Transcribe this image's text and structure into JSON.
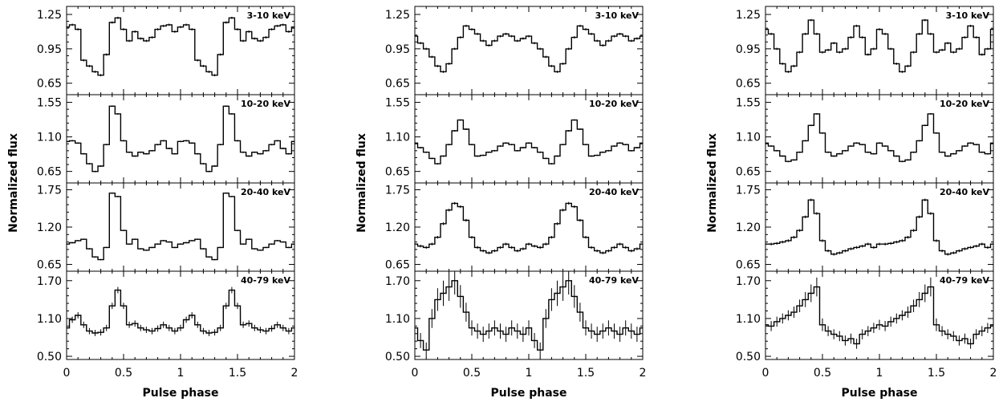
{
  "chart_data": [
    {
      "type": "line",
      "xlabel": "Pulse phase",
      "ylabel": "Normalized flux",
      "x_ticks": [
        "0",
        "0.5",
        "1",
        "1.5",
        "2"
      ],
      "xlim": [
        0,
        2
      ],
      "panels": [
        {
          "label": "3-10 keV",
          "ylim": [
            0.55,
            1.32
          ],
          "y_ticks": [
            "0.65",
            "0.95",
            "1.25"
          ],
          "y_tick_values": [
            0.65,
            0.95,
            1.25
          ],
          "x": [
            0.0,
            0.05,
            0.1,
            0.15,
            0.2,
            0.25,
            0.3,
            0.35,
            0.4,
            0.45,
            0.5,
            0.55,
            0.6,
            0.65,
            0.7,
            0.75,
            0.8,
            0.85,
            0.9,
            0.95,
            1.0
          ],
          "values": [
            1.14,
            1.16,
            1.12,
            0.85,
            0.8,
            0.75,
            0.72,
            0.9,
            1.18,
            1.22,
            1.12,
            1.02,
            1.1,
            1.04,
            1.02,
            1.05,
            1.12,
            1.15,
            1.16,
            1.1,
            1.14
          ],
          "errors": [
            0.01,
            0.01,
            0.01,
            0.01,
            0.01,
            0.01,
            0.01,
            0.01,
            0.01,
            0.01,
            0.01,
            0.01,
            0.01,
            0.01,
            0.01,
            0.01,
            0.01,
            0.01,
            0.01,
            0.01,
            0.01
          ]
        },
        {
          "label": "10-20 keV",
          "ylim": [
            0.5,
            1.65
          ],
          "y_ticks": [
            "0.65",
            "1.10",
            "1.55"
          ],
          "y_tick_values": [
            0.65,
            1.1,
            1.55
          ],
          "x": [
            0.0,
            0.05,
            0.1,
            0.15,
            0.2,
            0.25,
            0.3,
            0.35,
            0.4,
            0.45,
            0.5,
            0.55,
            0.6,
            0.65,
            0.7,
            0.75,
            0.8,
            0.85,
            0.9,
            0.95,
            1.0
          ],
          "values": [
            1.04,
            1.05,
            1.02,
            0.88,
            0.75,
            0.65,
            0.72,
            1.0,
            1.5,
            1.4,
            1.05,
            0.9,
            0.85,
            0.9,
            0.88,
            0.92,
            1.0,
            1.05,
            0.95,
            0.88,
            1.04
          ],
          "errors": [
            0.01,
            0.01,
            0.01,
            0.01,
            0.01,
            0.01,
            0.01,
            0.01,
            0.01,
            0.01,
            0.01,
            0.01,
            0.01,
            0.01,
            0.01,
            0.01,
            0.01,
            0.01,
            0.01,
            0.01,
            0.01
          ]
        },
        {
          "label": "20-40 keV",
          "ylim": [
            0.55,
            1.85
          ],
          "y_ticks": [
            "0.65",
            "1.20",
            "1.75"
          ],
          "y_tick_values": [
            0.65,
            1.2,
            1.75
          ],
          "x": [
            0.0,
            0.05,
            0.1,
            0.15,
            0.2,
            0.25,
            0.3,
            0.35,
            0.4,
            0.45,
            0.5,
            0.55,
            0.6,
            0.65,
            0.7,
            0.75,
            0.8,
            0.85,
            0.9,
            0.95,
            1.0
          ],
          "values": [
            0.95,
            0.97,
            1.0,
            1.02,
            0.88,
            0.76,
            0.72,
            0.9,
            1.7,
            1.65,
            1.15,
            0.95,
            1.02,
            0.88,
            0.86,
            0.9,
            0.95,
            1.0,
            0.98,
            0.9,
            0.95
          ],
          "errors": [
            0.01,
            0.01,
            0.01,
            0.01,
            0.01,
            0.01,
            0.01,
            0.01,
            0.01,
            0.01,
            0.01,
            0.01,
            0.01,
            0.01,
            0.01,
            0.01,
            0.01,
            0.01,
            0.01,
            0.01,
            0.01
          ]
        },
        {
          "label": "40-79 keV",
          "ylim": [
            0.45,
            1.85
          ],
          "y_ticks": [
            "0.50",
            "1.10",
            "1.70"
          ],
          "y_tick_values": [
            0.5,
            1.1,
            1.7
          ],
          "x": [
            0.0,
            0.05,
            0.1,
            0.15,
            0.2,
            0.25,
            0.3,
            0.35,
            0.4,
            0.45,
            0.5,
            0.55,
            0.6,
            0.65,
            0.7,
            0.75,
            0.8,
            0.85,
            0.9,
            0.95,
            1.0
          ],
          "values": [
            0.95,
            1.08,
            1.15,
            1.0,
            0.9,
            0.87,
            0.88,
            0.95,
            1.3,
            1.55,
            1.3,
            1.0,
            1.02,
            0.95,
            0.92,
            0.9,
            0.94,
            1.0,
            0.95,
            0.9,
            0.95
          ],
          "errors": [
            0.05,
            0.05,
            0.05,
            0.05,
            0.05,
            0.05,
            0.05,
            0.05,
            0.05,
            0.05,
            0.05,
            0.05,
            0.05,
            0.05,
            0.05,
            0.05,
            0.05,
            0.05,
            0.05,
            0.05,
            0.05
          ]
        }
      ]
    },
    {
      "type": "line",
      "xlabel": "Pulse phase",
      "ylabel": "Normalized flux",
      "x_ticks": [
        "0",
        "0.5",
        "1",
        "1.5",
        "2"
      ],
      "xlim": [
        0,
        2
      ],
      "panels": [
        {
          "label": "3-10 keV",
          "ylim": [
            0.55,
            1.32
          ],
          "y_ticks": [
            "0.65",
            "0.95",
            "1.25"
          ],
          "y_tick_values": [
            0.65,
            0.95,
            1.25
          ],
          "x": [
            0.0,
            0.05,
            0.1,
            0.15,
            0.2,
            0.25,
            0.3,
            0.35,
            0.4,
            0.45,
            0.5,
            0.55,
            0.6,
            0.65,
            0.7,
            0.75,
            0.8,
            0.85,
            0.9,
            0.95,
            1.0
          ],
          "values": [
            1.06,
            1.0,
            0.95,
            0.88,
            0.8,
            0.75,
            0.82,
            0.95,
            1.05,
            1.15,
            1.12,
            1.08,
            1.02,
            0.98,
            1.02,
            1.06,
            1.08,
            1.06,
            1.02,
            1.04,
            1.06
          ],
          "errors": [
            0.01,
            0.01,
            0.01,
            0.01,
            0.01,
            0.01,
            0.01,
            0.01,
            0.01,
            0.01,
            0.01,
            0.01,
            0.01,
            0.01,
            0.01,
            0.01,
            0.01,
            0.01,
            0.01,
            0.01,
            0.01
          ]
        },
        {
          "label": "10-20 keV",
          "ylim": [
            0.5,
            1.65
          ],
          "y_ticks": [
            "0.65",
            "1.10",
            "1.55"
          ],
          "y_tick_values": [
            0.65,
            1.1,
            1.55
          ],
          "x": [
            0.0,
            0.05,
            0.1,
            0.15,
            0.2,
            0.25,
            0.3,
            0.35,
            0.4,
            0.45,
            0.5,
            0.55,
            0.6,
            0.65,
            0.7,
            0.75,
            0.8,
            0.85,
            0.9,
            0.95,
            1.0
          ],
          "values": [
            1.02,
            0.96,
            0.9,
            0.82,
            0.75,
            0.85,
            1.0,
            1.18,
            1.32,
            1.2,
            1.0,
            0.85,
            0.86,
            0.9,
            0.92,
            0.98,
            1.02,
            1.0,
            0.92,
            0.96,
            1.02
          ],
          "errors": [
            0.01,
            0.01,
            0.01,
            0.01,
            0.01,
            0.01,
            0.01,
            0.01,
            0.01,
            0.01,
            0.01,
            0.01,
            0.01,
            0.01,
            0.01,
            0.01,
            0.01,
            0.01,
            0.01,
            0.01,
            0.01
          ]
        },
        {
          "label": "20-40 keV",
          "ylim": [
            0.55,
            1.85
          ],
          "y_ticks": [
            "0.65",
            "1.20",
            "1.75"
          ],
          "y_tick_values": [
            0.65,
            1.2,
            1.75
          ],
          "x": [
            0.0,
            0.05,
            0.1,
            0.15,
            0.2,
            0.25,
            0.3,
            0.35,
            0.4,
            0.45,
            0.5,
            0.55,
            0.6,
            0.65,
            0.7,
            0.75,
            0.8,
            0.85,
            0.9,
            0.95,
            1.0
          ],
          "values": [
            0.95,
            0.92,
            0.9,
            0.95,
            1.05,
            1.25,
            1.45,
            1.55,
            1.5,
            1.3,
            1.05,
            0.9,
            0.85,
            0.82,
            0.85,
            0.9,
            0.95,
            0.9,
            0.85,
            0.88,
            0.95
          ],
          "errors": [
            0.02,
            0.02,
            0.02,
            0.02,
            0.02,
            0.02,
            0.02,
            0.02,
            0.02,
            0.02,
            0.02,
            0.02,
            0.02,
            0.02,
            0.02,
            0.02,
            0.02,
            0.02,
            0.02,
            0.02,
            0.02
          ]
        },
        {
          "label": "40-79 keV",
          "ylim": [
            0.45,
            1.85
          ],
          "y_ticks": [
            "0.50",
            "1.10",
            "1.70"
          ],
          "y_tick_values": [
            0.5,
            1.1,
            1.7
          ],
          "x": [
            0.0,
            0.05,
            0.1,
            0.15,
            0.2,
            0.25,
            0.3,
            0.35,
            0.4,
            0.45,
            0.5,
            0.55,
            0.6,
            0.65,
            0.7,
            0.75,
            0.8,
            0.85,
            0.9,
            0.95,
            1.0
          ],
          "values": [
            0.95,
            0.75,
            0.6,
            1.1,
            1.4,
            1.5,
            1.6,
            1.7,
            1.45,
            1.2,
            0.95,
            0.9,
            0.85,
            0.9,
            0.95,
            0.9,
            0.85,
            0.95,
            0.9,
            0.85,
            0.95
          ],
          "errors": [
            0.12,
            0.12,
            0.12,
            0.15,
            0.18,
            0.2,
            0.22,
            0.22,
            0.18,
            0.15,
            0.12,
            0.12,
            0.12,
            0.12,
            0.12,
            0.12,
            0.12,
            0.12,
            0.12,
            0.12,
            0.12
          ]
        }
      ]
    },
    {
      "type": "line",
      "xlabel": "Pulse phase",
      "ylabel": "Normalized flux",
      "x_ticks": [
        "0",
        "0.5",
        "1",
        "1.5",
        "2"
      ],
      "xlim": [
        0,
        2
      ],
      "panels": [
        {
          "label": "3-10 keV",
          "ylim": [
            0.55,
            1.32
          ],
          "y_ticks": [
            "0.65",
            "0.95",
            "1.25"
          ],
          "y_tick_values": [
            0.65,
            0.95,
            1.25
          ],
          "x": [
            0.0,
            0.05,
            0.1,
            0.15,
            0.2,
            0.25,
            0.3,
            0.35,
            0.4,
            0.45,
            0.5,
            0.55,
            0.6,
            0.65,
            0.7,
            0.75,
            0.8,
            0.85,
            0.9,
            0.95,
            1.0
          ],
          "values": [
            1.12,
            1.08,
            0.95,
            0.82,
            0.75,
            0.8,
            0.92,
            1.08,
            1.2,
            1.08,
            0.92,
            0.94,
            1.0,
            0.92,
            0.95,
            1.05,
            1.15,
            1.05,
            0.9,
            0.95,
            1.12
          ],
          "errors": [
            0.01,
            0.01,
            0.01,
            0.01,
            0.01,
            0.01,
            0.01,
            0.01,
            0.01,
            0.01,
            0.01,
            0.01,
            0.01,
            0.01,
            0.01,
            0.01,
            0.01,
            0.01,
            0.01,
            0.01,
            0.01
          ]
        },
        {
          "label": "10-20 keV",
          "ylim": [
            0.5,
            1.65
          ],
          "y_ticks": [
            "0.65",
            "1.10",
            "1.55"
          ],
          "y_tick_values": [
            0.65,
            1.1,
            1.55
          ],
          "x": [
            0.0,
            0.05,
            0.1,
            0.15,
            0.2,
            0.25,
            0.3,
            0.35,
            0.4,
            0.45,
            0.5,
            0.55,
            0.6,
            0.65,
            0.7,
            0.75,
            0.8,
            0.85,
            0.9,
            0.95,
            1.0
          ],
          "values": [
            1.02,
            0.98,
            0.92,
            0.85,
            0.78,
            0.8,
            0.9,
            1.05,
            1.25,
            1.4,
            1.15,
            0.9,
            0.85,
            0.88,
            0.92,
            0.98,
            1.02,
            1.0,
            0.9,
            0.88,
            1.02
          ],
          "errors": [
            0.01,
            0.01,
            0.01,
            0.01,
            0.01,
            0.01,
            0.01,
            0.01,
            0.01,
            0.01,
            0.01,
            0.01,
            0.01,
            0.01,
            0.01,
            0.01,
            0.01,
            0.01,
            0.01,
            0.01,
            0.01
          ]
        },
        {
          "label": "20-40 keV",
          "ylim": [
            0.55,
            1.85
          ],
          "y_ticks": [
            "0.65",
            "1.20",
            "1.75"
          ],
          "y_tick_values": [
            0.65,
            1.2,
            1.75
          ],
          "x": [
            0.0,
            0.05,
            0.1,
            0.15,
            0.2,
            0.25,
            0.3,
            0.35,
            0.4,
            0.45,
            0.5,
            0.55,
            0.6,
            0.65,
            0.7,
            0.75,
            0.8,
            0.85,
            0.9,
            0.95,
            1.0
          ],
          "values": [
            0.95,
            0.95,
            0.96,
            0.98,
            1.0,
            1.05,
            1.15,
            1.35,
            1.6,
            1.4,
            1.0,
            0.85,
            0.8,
            0.82,
            0.85,
            0.88,
            0.9,
            0.92,
            0.95,
            0.9,
            0.95
          ],
          "errors": [
            0.02,
            0.02,
            0.02,
            0.02,
            0.02,
            0.02,
            0.02,
            0.02,
            0.02,
            0.02,
            0.02,
            0.02,
            0.02,
            0.02,
            0.02,
            0.02,
            0.02,
            0.02,
            0.02,
            0.02,
            0.02
          ]
        },
        {
          "label": "40-79 keV",
          "ylim": [
            0.45,
            1.85
          ],
          "y_ticks": [
            "0.50",
            "1.10",
            "1.70"
          ],
          "y_tick_values": [
            0.5,
            1.1,
            1.7
          ],
          "x": [
            0.0,
            0.05,
            0.1,
            0.15,
            0.2,
            0.25,
            0.3,
            0.35,
            0.4,
            0.45,
            0.5,
            0.55,
            0.6,
            0.65,
            0.7,
            0.75,
            0.8,
            0.85,
            0.9,
            0.95,
            1.0
          ],
          "values": [
            1.0,
            0.98,
            1.05,
            1.1,
            1.15,
            1.2,
            1.3,
            1.4,
            1.5,
            1.6,
            1.0,
            0.9,
            0.85,
            0.82,
            0.75,
            0.78,
            0.7,
            0.85,
            0.9,
            0.95,
            1.0
          ],
          "errors": [
            0.08,
            0.08,
            0.08,
            0.08,
            0.08,
            0.09,
            0.1,
            0.12,
            0.14,
            0.15,
            0.1,
            0.08,
            0.08,
            0.08,
            0.08,
            0.08,
            0.08,
            0.08,
            0.08,
            0.08,
            0.08
          ]
        }
      ]
    }
  ]
}
